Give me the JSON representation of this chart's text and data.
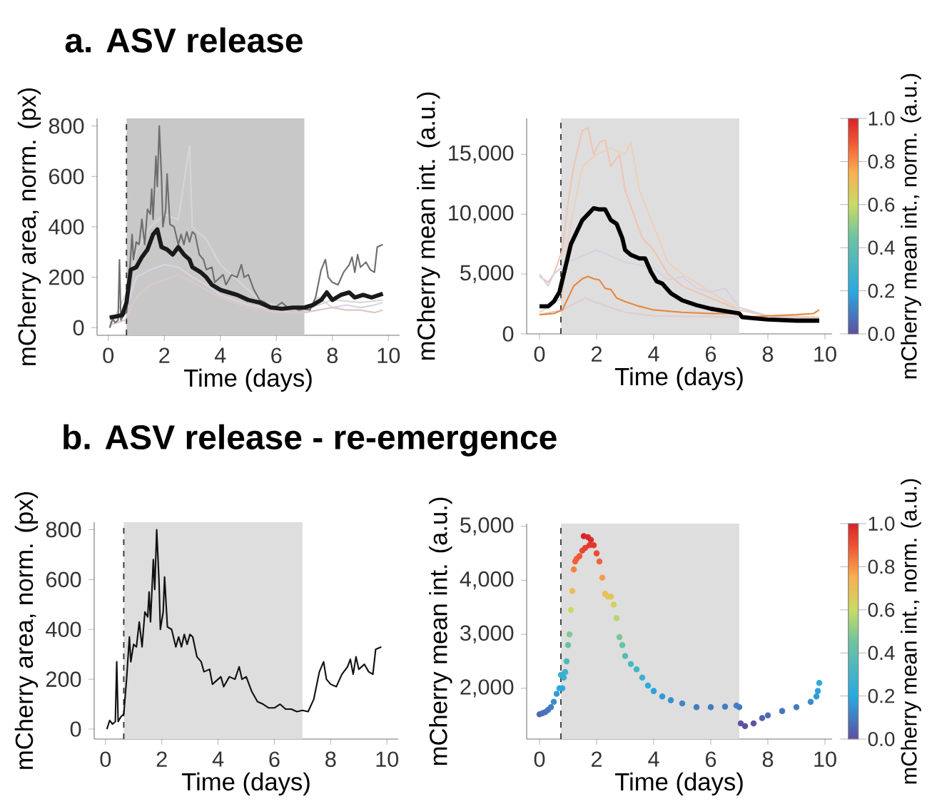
{
  "chart_data": [
    {
      "type": "line",
      "title": "a. ASV release",
      "xlabel": "Time (days)",
      "ylabel": "mCherry area, norm. (px)",
      "xlim": [
        -0.4,
        10.4
      ],
      "ylim": [
        -30,
        830
      ],
      "xticks": [
        0,
        2,
        4,
        6,
        8,
        10
      ],
      "yticks": [
        0,
        200,
        400,
        600,
        800
      ],
      "ref_lines": [
        {
          "axis": "x",
          "value": 0.65,
          "line_style": "dashed",
          "color": "#333333"
        }
      ],
      "bands": [
        {
          "axis": "x",
          "from": 0.65,
          "to": 7.0,
          "color": "#c8c8c8"
        }
      ],
      "series": [
        {
          "color": "#d8d4e4",
          "x": [
            0.05,
            0.6,
            1.0,
            1.5,
            2.0,
            2.5,
            3.0,
            3.5,
            4.0,
            4.5,
            5.0,
            5.5,
            6.0,
            6.5,
            7.0,
            7.5,
            8.0,
            8.5,
            9.0,
            9.5,
            9.8
          ],
          "values": [
            20,
            60,
            200,
            230,
            250,
            240,
            200,
            170,
            130,
            110,
            90,
            80,
            70,
            60,
            60,
            120,
            80,
            90,
            80,
            90,
            100
          ]
        },
        {
          "color": "#dcc8c8",
          "x": [
            0.05,
            0.6,
            1.0,
            1.5,
            2.0,
            2.5,
            3.0,
            3.5,
            4.0,
            4.5,
            5.0,
            5.5,
            6.0,
            7.0,
            7.5,
            8.0,
            8.5,
            9.0,
            9.5,
            9.8
          ],
          "values": [
            10,
            30,
            120,
            170,
            190,
            210,
            180,
            150,
            120,
            100,
            80,
            70,
            60,
            60,
            70,
            80,
            70,
            70,
            60,
            70
          ]
        },
        {
          "color": "#d6d6d6",
          "x": [
            0.05,
            0.7,
            1.0,
            1.5,
            2.0,
            2.5,
            2.9,
            3.0,
            3.5,
            4.0,
            4.5,
            5.0,
            5.5,
            6.0,
            6.5,
            7.0,
            8.0,
            9.0,
            9.8
          ],
          "values": [
            0,
            150,
            300,
            400,
            450,
            430,
            720,
            400,
            350,
            250,
            200,
            150,
            100,
            90,
            80,
            70,
            110,
            100,
            110
          ]
        },
        {
          "color": "#6e6e6e",
          "x": [
            0.05,
            0.15,
            0.25,
            0.35,
            0.4,
            0.45,
            0.55,
            0.65,
            0.75,
            0.85,
            0.9,
            1.0,
            1.1,
            1.2,
            1.3,
            1.4,
            1.5,
            1.55,
            1.6,
            1.7,
            1.75,
            1.82,
            1.9,
            1.95,
            2.05,
            2.1,
            2.2,
            2.35,
            2.5,
            2.6,
            2.7,
            2.8,
            2.9,
            3.0,
            3.1,
            3.25,
            3.4,
            3.5,
            3.7,
            3.8,
            3.9,
            4.1,
            4.2,
            4.4,
            4.6,
            4.75,
            4.85,
            5.0,
            5.2,
            5.4,
            5.6,
            5.8,
            6.0,
            6.2,
            6.4,
            6.6,
            6.8,
            7.0,
            7.2,
            7.4,
            7.6,
            7.75,
            7.85,
            8.0,
            8.2,
            8.4,
            8.6,
            8.7,
            8.8,
            8.9,
            9.0,
            9.2,
            9.35,
            9.5,
            9.6,
            9.8
          ],
          "values": [
            0,
            35,
            20,
            30,
            270,
            30,
            50,
            60,
            200,
            370,
            270,
            340,
            330,
            430,
            330,
            470,
            450,
            550,
            430,
            680,
            560,
            800,
            600,
            400,
            470,
            610,
            410,
            400,
            330,
            370,
            330,
            380,
            340,
            380,
            370,
            290,
            270,
            230,
            240,
            180,
            190,
            210,
            170,
            210,
            200,
            250,
            200,
            210,
            150,
            110,
            100,
            85,
            85,
            100,
            80,
            80,
            70,
            75,
            70,
            120,
            230,
            270,
            200,
            180,
            170,
            220,
            250,
            280,
            220,
            290,
            240,
            260,
            230,
            220,
            320,
            330
          ]
        },
        {
          "color": "#1a1a1a",
          "x": [
            0.05,
            0.3,
            0.5,
            0.65,
            0.8,
            1.0,
            1.2,
            1.4,
            1.6,
            1.75,
            1.9,
            2.1,
            2.3,
            2.5,
            2.7,
            2.9,
            3.0,
            3.3,
            3.5,
            3.7,
            4.0,
            4.3,
            4.6,
            5.0,
            5.4,
            5.8,
            6.2,
            6.6,
            7.0,
            7.3,
            7.6,
            7.8,
            8.0,
            8.3,
            8.6,
            8.8,
            9.1,
            9.4,
            9.8
          ],
          "values": [
            40,
            45,
            50,
            100,
            230,
            240,
            280,
            310,
            370,
            390,
            320,
            310,
            290,
            320,
            290,
            270,
            240,
            220,
            200,
            170,
            150,
            140,
            130,
            110,
            100,
            80,
            75,
            80,
            80,
            90,
            110,
            140,
            110,
            130,
            140,
            120,
            130,
            120,
            135
          ]
        }
      ]
    },
    {
      "type": "line",
      "xlabel": "Time (days)",
      "ylabel": "mCherry mean int. (a.u.)",
      "clabel": "mCherry mean int., norm. (a.u.)",
      "xlim": [
        -0.45,
        10.25
      ],
      "ylim": [
        0,
        18000
      ],
      "xticks": [
        0,
        2,
        4,
        6,
        8,
        10
      ],
      "yticks": [
        0,
        {
          "value": 5000,
          "label": "5,000"
        },
        {
          "value": 10000,
          "label": "10,000"
        },
        {
          "value": 15000,
          "label": "15,000"
        }
      ],
      "clim": [
        0,
        1
      ],
      "cticks": [
        {
          "value": 0,
          "label": "0.0"
        },
        {
          "value": 0.2,
          "label": "0.2"
        },
        {
          "value": 0.4,
          "label": "0.4"
        },
        {
          "value": 0.6,
          "label": "0.6"
        },
        {
          "value": 0.8,
          "label": "0.8"
        },
        {
          "value": 1,
          "label": "1.0"
        }
      ],
      "ref_lines": [
        {
          "axis": "x",
          "value": 0.75,
          "line_style": "dashed",
          "color": "#333333"
        }
      ],
      "bands": [
        {
          "axis": "x",
          "from": 0.75,
          "to": 7.0,
          "color": "#dedede"
        }
      ],
      "series": [
        {
          "color": "#eec4b4",
          "x": [
            0,
            0.3,
            0.5,
            0.8,
            1.0,
            1.2,
            1.5,
            1.7,
            1.9,
            2.1,
            2.3,
            2.5,
            2.8,
            3.0,
            3.3,
            3.6,
            4.0,
            4.5,
            5.0,
            6.0,
            7.0,
            8.0,
            9.0,
            9.8
          ],
          "values": [
            4800,
            4300,
            5000,
            7000,
            11000,
            14000,
            17000,
            17200,
            15000,
            16000,
            16200,
            14000,
            15000,
            12000,
            10000,
            8000,
            7000,
            5000,
            4000,
            3000,
            2000,
            1500,
            1300,
            1300
          ]
        },
        {
          "color": "#ecd0bc",
          "x": [
            0,
            0.8,
            1.0,
            1.5,
            2.0,
            2.5,
            3.0,
            3.2,
            3.5,
            4.0,
            4.5,
            5.0,
            6.0,
            7.0,
            8.0,
            9.8
          ],
          "values": [
            1800,
            3000,
            8000,
            14000,
            15000,
            15500,
            15000,
            16000,
            12000,
            9000,
            6000,
            5000,
            3500,
            2000,
            1500,
            1400
          ]
        },
        {
          "color": "#d8d0e0",
          "x": [
            0,
            0.3,
            0.5,
            1.0,
            1.5,
            2.0,
            3.0,
            4.0,
            4.5,
            5.0,
            5.5,
            6.0,
            6.5,
            7.0,
            8.0,
            9.8
          ],
          "values": [
            5000,
            4000,
            5000,
            6000,
            6500,
            7000,
            6000,
            5500,
            4500,
            4800,
            3800,
            3500,
            3800,
            2200,
            1500,
            1200
          ]
        },
        {
          "color": "#e0cccc",
          "x": [
            0,
            0.8,
            1.2,
            1.6,
            2.0,
            3.0,
            4.0,
            7.0,
            8.0,
            9.8
          ],
          "values": [
            1600,
            2000,
            2500,
            3000,
            2600,
            1800,
            1500,
            1400,
            1300,
            1200
          ]
        },
        {
          "color": "#e8873c",
          "x": [
            0.0,
            0.5,
            0.8,
            1.0,
            1.2,
            1.5,
            1.7,
            1.9,
            2.1,
            2.3,
            2.5,
            2.7,
            3.0,
            3.5,
            4.0,
            5.0,
            6.0,
            7.0,
            7.1,
            8.0,
            9.0,
            9.6,
            9.8
          ],
          "values": [
            1600,
            1700,
            2000,
            3000,
            4000,
            4600,
            4800,
            4600,
            4500,
            3800,
            3700,
            3000,
            2700,
            2300,
            2000,
            1800,
            1700,
            1700,
            1400,
            1500,
            1600,
            1700,
            2000
          ]
        },
        {
          "color": "#000000",
          "x": [
            0.0,
            0.3,
            0.5,
            0.7,
            0.9,
            1.1,
            1.3,
            1.5,
            1.7,
            1.9,
            2.1,
            2.3,
            2.5,
            2.7,
            2.9,
            3.0,
            3.2,
            3.5,
            3.7,
            3.9,
            4.1,
            4.3,
            4.6,
            5.0,
            5.5,
            6.0,
            6.5,
            7.0,
            7.1,
            7.5,
            8.0,
            9.0,
            9.8
          ],
          "values": [
            2300,
            2300,
            2700,
            3500,
            5500,
            7500,
            8500,
            9500,
            10000,
            10500,
            10400,
            10400,
            9500,
            9200,
            8000,
            7000,
            6600,
            6300,
            6300,
            5200,
            4400,
            4200,
            3400,
            2800,
            2400,
            2100,
            1900,
            1700,
            1400,
            1300,
            1200,
            1100,
            1100
          ]
        }
      ]
    },
    {
      "type": "line",
      "title": "b. ASV release - re-emergence",
      "xlabel": "Time (days)",
      "ylabel": "mCherry area, norm. (px)",
      "xlim": [
        -0.4,
        10.4
      ],
      "ylim": [
        -40,
        830
      ],
      "xticks": [
        0,
        2,
        4,
        6,
        8,
        10
      ],
      "yticks": [
        0,
        200,
        400,
        600,
        800
      ],
      "ref_lines": [
        {
          "axis": "x",
          "value": 0.65,
          "line_style": "dashed",
          "color": "#333333"
        }
      ],
      "bands": [
        {
          "axis": "x",
          "from": 0.65,
          "to": 7.0,
          "color": "#dedede"
        }
      ],
      "series": [
        {
          "color": "#111111",
          "x": [
            0.05,
            0.15,
            0.25,
            0.35,
            0.4,
            0.45,
            0.55,
            0.65,
            0.75,
            0.85,
            0.9,
            1.0,
            1.1,
            1.2,
            1.3,
            1.4,
            1.5,
            1.55,
            1.6,
            1.7,
            1.75,
            1.82,
            1.9,
            1.95,
            2.05,
            2.1,
            2.2,
            2.35,
            2.5,
            2.6,
            2.7,
            2.8,
            2.9,
            3.0,
            3.1,
            3.25,
            3.4,
            3.5,
            3.7,
            3.8,
            3.9,
            4.1,
            4.2,
            4.4,
            4.6,
            4.75,
            4.85,
            5.0,
            5.2,
            5.4,
            5.6,
            5.8,
            6.0,
            6.2,
            6.4,
            6.6,
            6.8,
            7.0,
            7.2,
            7.4,
            7.6,
            7.75,
            7.85,
            8.0,
            8.2,
            8.4,
            8.6,
            8.7,
            8.8,
            8.9,
            9.0,
            9.2,
            9.35,
            9.5,
            9.6,
            9.8
          ],
          "values": [
            0,
            35,
            20,
            30,
            270,
            30,
            50,
            60,
            200,
            370,
            270,
            340,
            330,
            430,
            330,
            470,
            450,
            550,
            430,
            680,
            560,
            800,
            600,
            400,
            470,
            610,
            410,
            400,
            330,
            370,
            330,
            380,
            340,
            380,
            370,
            290,
            270,
            230,
            240,
            180,
            190,
            210,
            170,
            210,
            200,
            250,
            200,
            210,
            150,
            110,
            100,
            85,
            85,
            100,
            80,
            80,
            70,
            75,
            70,
            120,
            230,
            270,
            200,
            180,
            170,
            220,
            250,
            280,
            220,
            290,
            240,
            260,
            230,
            220,
            320,
            330
          ]
        }
      ]
    },
    {
      "type": "scatter",
      "xlabel": "Time (days)",
      "ylabel": "mCherry mean int. (a.u.)",
      "clabel": "mCherry mean int., norm. (a.u.)",
      "xlim": [
        -0.45,
        10.25
      ],
      "ylim": [
        1060,
        5050
      ],
      "xticks": [
        0,
        2,
        4,
        6,
        8,
        10
      ],
      "yticks": [
        {
          "value": 2000,
          "label": "2,000"
        },
        {
          "value": 3000,
          "label": "3,000"
        },
        {
          "value": 4000,
          "label": "4,000"
        },
        {
          "value": 5000,
          "label": "5,000"
        }
      ],
      "clim": [
        0,
        1
      ],
      "cticks": [
        {
          "value": 0,
          "label": "0.0"
        },
        {
          "value": 0.2,
          "label": "0.2"
        },
        {
          "value": 0.4,
          "label": "0.4"
        },
        {
          "value": 0.6,
          "label": "0.6"
        },
        {
          "value": 0.8,
          "label": "0.8"
        },
        {
          "value": 1,
          "label": "1.0"
        }
      ],
      "marker": "circle",
      "ref_lines": [
        {
          "axis": "x",
          "value": 0.75,
          "line_style": "dashed",
          "color": "#333333"
        }
      ],
      "bands": [
        {
          "axis": "x",
          "from": 0.75,
          "to": 7.0,
          "color": "#dedede"
        }
      ],
      "x": [
        0.0,
        0.1,
        0.2,
        0.3,
        0.4,
        0.5,
        0.6,
        0.7,
        0.75,
        0.8,
        0.85,
        0.9,
        0.95,
        1.0,
        1.05,
        1.1,
        1.15,
        1.2,
        1.25,
        1.3,
        1.4,
        1.5,
        1.55,
        1.6,
        1.7,
        1.75,
        1.8,
        1.9,
        2.0,
        2.1,
        2.2,
        2.3,
        2.4,
        2.5,
        2.6,
        2.7,
        2.8,
        2.9,
        3.0,
        3.2,
        3.4,
        3.6,
        3.8,
        4.0,
        4.3,
        4.6,
        5.0,
        5.5,
        6.0,
        6.5,
        6.9,
        7.0,
        7.05,
        7.2,
        7.5,
        7.8,
        8.0,
        8.5,
        9.0,
        9.5,
        9.7,
        9.75,
        9.8
      ],
      "values": [
        1520,
        1540,
        1560,
        1600,
        1650,
        1750,
        1900,
        2000,
        2250,
        2000,
        2200,
        2300,
        2500,
        2800,
        3000,
        3450,
        3800,
        4200,
        4350,
        4400,
        4450,
        4550,
        4820,
        4600,
        4800,
        4650,
        4750,
        4650,
        4500,
        4350,
        4050,
        3750,
        3700,
        3700,
        3550,
        3300,
        2950,
        2800,
        2600,
        2450,
        2350,
        2200,
        2050,
        1950,
        1850,
        1780,
        1720,
        1650,
        1650,
        1660,
        1680,
        1650,
        1350,
        1300,
        1350,
        1450,
        1500,
        1580,
        1650,
        1750,
        1850,
        1950,
        2100
      ],
      "cvalues": [
        0.06,
        0.07,
        0.07,
        0.09,
        0.1,
        0.13,
        0.17,
        0.2,
        0.27,
        0.2,
        0.26,
        0.28,
        0.34,
        0.43,
        0.48,
        0.61,
        0.71,
        0.82,
        0.87,
        0.88,
        0.89,
        0.92,
        1.0,
        0.94,
        0.99,
        0.95,
        0.98,
        0.95,
        0.91,
        0.87,
        0.78,
        0.7,
        0.68,
        0.68,
        0.64,
        0.57,
        0.47,
        0.43,
        0.37,
        0.33,
        0.3,
        0.26,
        0.21,
        0.18,
        0.16,
        0.14,
        0.12,
        0.1,
        0.1,
        0.1,
        0.11,
        0.1,
        0.01,
        0.0,
        0.01,
        0.04,
        0.06,
        0.08,
        0.1,
        0.13,
        0.16,
        0.18,
        0.23
      ]
    }
  ]
}
